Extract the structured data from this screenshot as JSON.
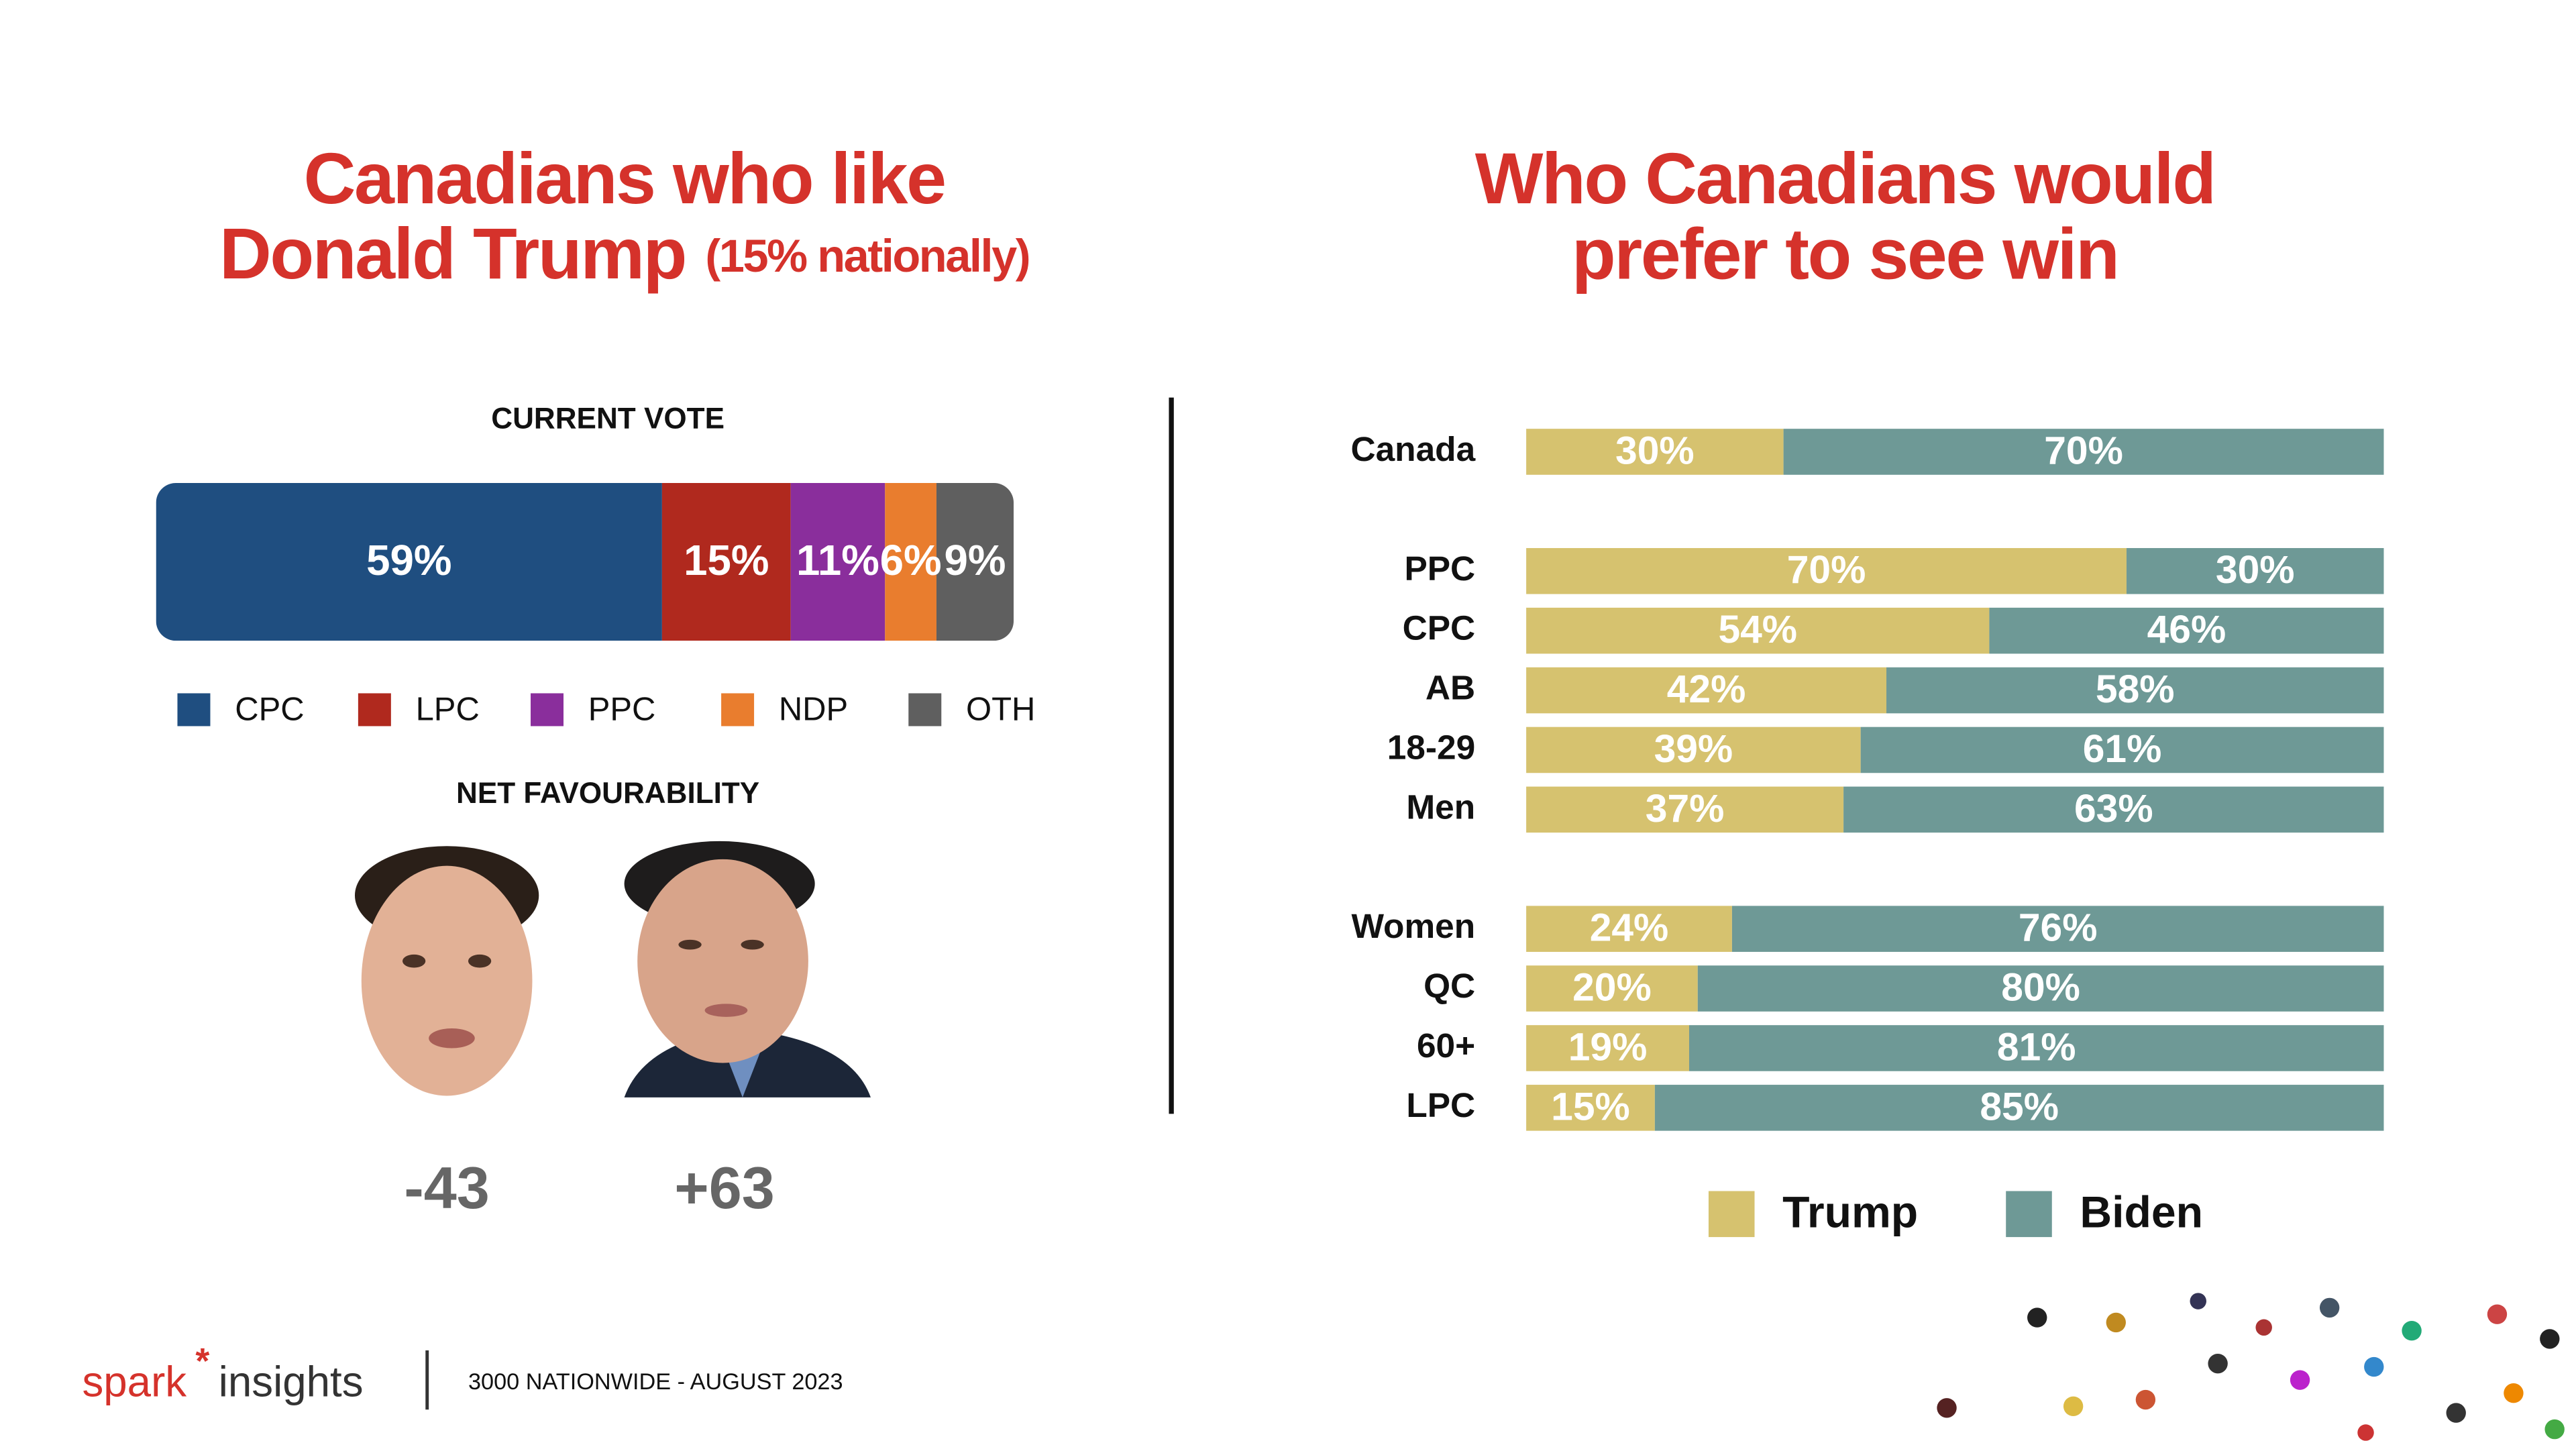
{
  "left_title": [
    "Canadians who like",
    "Donald Trump"
  ],
  "left_title_note": "(15% nationally)",
  "right_title": [
    "Who Canadians would",
    "prefer to see win"
  ],
  "chart_data": [
    {
      "type": "stacked-bar",
      "orientation": "horizontal",
      "title": "CURRENT VOTE",
      "xlim": [
        0,
        100
      ],
      "legend": "bottom",
      "series": [
        {
          "name": "CPC",
          "color": "#1f4e80",
          "values": [
            59
          ],
          "value_labels": [
            "59%"
          ]
        },
        {
          "name": "LPC",
          "color": "#b0291e",
          "values": [
            15
          ],
          "value_labels": [
            "15%"
          ]
        },
        {
          "name": "PPC",
          "color": "#8a2e9c",
          "values": [
            11
          ],
          "value_labels": [
            "11%"
          ]
        },
        {
          "name": "NDP",
          "color": "#e97d2e",
          "values": [
            6
          ],
          "value_labels": [
            "6%"
          ]
        },
        {
          "name": "OTH",
          "color": "#5f5f5f",
          "values": [
            9
          ],
          "value_labels": [
            "9%"
          ]
        }
      ]
    },
    {
      "type": "stacked-bar",
      "orientation": "horizontal",
      "xlim": [
        0,
        100
      ],
      "legend": "bottom",
      "categories": [
        "Canada",
        "PPC",
        "CPC",
        "AB",
        "18-29",
        "Men",
        "Women",
        "QC",
        "60+",
        "LPC"
      ],
      "series": [
        {
          "name": "Trump",
          "color": "#d6c26f",
          "values": [
            30,
            70,
            54,
            42,
            39,
            37,
            24,
            20,
            19,
            15
          ],
          "value_labels": [
            "30%",
            "70%",
            "54%",
            "42%",
            "39%",
            "37%",
            "24%",
            "20%",
            "19%",
            "15%"
          ]
        },
        {
          "name": "Biden",
          "color": "#6e9996",
          "values": [
            70,
            30,
            46,
            58,
            61,
            63,
            76,
            80,
            81,
            85
          ],
          "value_labels": [
            "70%",
            "30%",
            "46%",
            "58%",
            "61%",
            "63%",
            "76%",
            "80%",
            "81%",
            "85%"
          ]
        }
      ]
    }
  ],
  "net_favourability": {
    "title": "NET FAVOURABILITY",
    "values": [
      -43,
      63
    ],
    "value_labels": [
      "-43",
      "+63"
    ]
  },
  "footer": {
    "brand": [
      "spark",
      "insights"
    ],
    "note": "3000 NATIONWIDE - AUGUST 2023"
  }
}
